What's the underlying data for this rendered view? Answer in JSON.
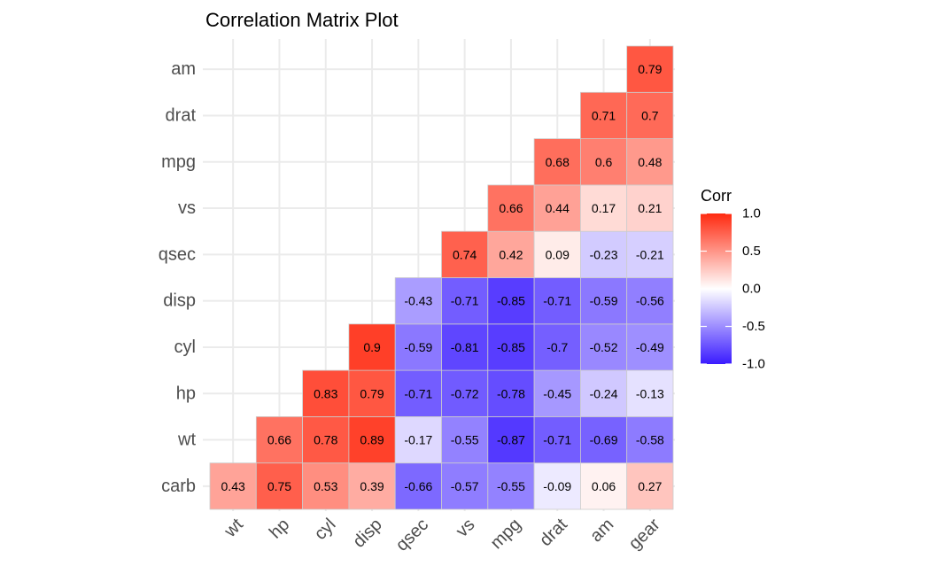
{
  "chart_data": {
    "type": "heatmap",
    "title": "Correlation Matrix Plot",
    "x_categories": [
      "wt",
      "hp",
      "cyl",
      "disp",
      "qsec",
      "vs",
      "mpg",
      "drat",
      "am",
      "gear"
    ],
    "y_categories": [
      "carb",
      "wt",
      "hp",
      "cyl",
      "disp",
      "qsec",
      "vs",
      "mpg",
      "drat",
      "am"
    ],
    "cells": [
      {
        "x": "wt",
        "y": "carb",
        "value": 0.43,
        "label": "0.43"
      },
      {
        "x": "hp",
        "y": "carb",
        "value": 0.75,
        "label": "0.75"
      },
      {
        "x": "cyl",
        "y": "carb",
        "value": 0.53,
        "label": "0.53"
      },
      {
        "x": "disp",
        "y": "carb",
        "value": 0.39,
        "label": "0.39"
      },
      {
        "x": "qsec",
        "y": "carb",
        "value": -0.66,
        "label": "-0.66"
      },
      {
        "x": "vs",
        "y": "carb",
        "value": -0.57,
        "label": "-0.57"
      },
      {
        "x": "mpg",
        "y": "carb",
        "value": -0.55,
        "label": "-0.55"
      },
      {
        "x": "drat",
        "y": "carb",
        "value": -0.09,
        "label": "-0.09"
      },
      {
        "x": "am",
        "y": "carb",
        "value": 0.06,
        "label": "0.06"
      },
      {
        "x": "gear",
        "y": "carb",
        "value": 0.27,
        "label": "0.27"
      },
      {
        "x": "hp",
        "y": "wt",
        "value": 0.66,
        "label": "0.66"
      },
      {
        "x": "cyl",
        "y": "wt",
        "value": 0.78,
        "label": "0.78"
      },
      {
        "x": "disp",
        "y": "wt",
        "value": 0.89,
        "label": "0.89"
      },
      {
        "x": "qsec",
        "y": "wt",
        "value": -0.17,
        "label": "-0.17"
      },
      {
        "x": "vs",
        "y": "wt",
        "value": -0.55,
        "label": "-0.55"
      },
      {
        "x": "mpg",
        "y": "wt",
        "value": -0.87,
        "label": "-0.87"
      },
      {
        "x": "drat",
        "y": "wt",
        "value": -0.71,
        "label": "-0.71"
      },
      {
        "x": "am",
        "y": "wt",
        "value": -0.69,
        "label": "-0.69"
      },
      {
        "x": "gear",
        "y": "wt",
        "value": -0.58,
        "label": "-0.58"
      },
      {
        "x": "cyl",
        "y": "hp",
        "value": 0.83,
        "label": "0.83"
      },
      {
        "x": "disp",
        "y": "hp",
        "value": 0.79,
        "label": "0.79"
      },
      {
        "x": "qsec",
        "y": "hp",
        "value": -0.71,
        "label": "-0.71"
      },
      {
        "x": "vs",
        "y": "hp",
        "value": -0.72,
        "label": "-0.72"
      },
      {
        "x": "mpg",
        "y": "hp",
        "value": -0.78,
        "label": "-0.78"
      },
      {
        "x": "drat",
        "y": "hp",
        "value": -0.45,
        "label": "-0.45"
      },
      {
        "x": "am",
        "y": "hp",
        "value": -0.24,
        "label": "-0.24"
      },
      {
        "x": "gear",
        "y": "hp",
        "value": -0.13,
        "label": "-0.13"
      },
      {
        "x": "disp",
        "y": "cyl",
        "value": 0.9,
        "label": "0.9"
      },
      {
        "x": "qsec",
        "y": "cyl",
        "value": -0.59,
        "label": "-0.59"
      },
      {
        "x": "vs",
        "y": "cyl",
        "value": -0.81,
        "label": "-0.81"
      },
      {
        "x": "mpg",
        "y": "cyl",
        "value": -0.85,
        "label": "-0.85"
      },
      {
        "x": "drat",
        "y": "cyl",
        "value": -0.7,
        "label": "-0.7"
      },
      {
        "x": "am",
        "y": "cyl",
        "value": -0.52,
        "label": "-0.52"
      },
      {
        "x": "gear",
        "y": "cyl",
        "value": -0.49,
        "label": "-0.49"
      },
      {
        "x": "qsec",
        "y": "disp",
        "value": -0.43,
        "label": "-0.43"
      },
      {
        "x": "vs",
        "y": "disp",
        "value": -0.71,
        "label": "-0.71"
      },
      {
        "x": "mpg",
        "y": "disp",
        "value": -0.85,
        "label": "-0.85"
      },
      {
        "x": "drat",
        "y": "disp",
        "value": -0.71,
        "label": "-0.71"
      },
      {
        "x": "am",
        "y": "disp",
        "value": -0.59,
        "label": "-0.59"
      },
      {
        "x": "gear",
        "y": "disp",
        "value": -0.56,
        "label": "-0.56"
      },
      {
        "x": "vs",
        "y": "qsec",
        "value": 0.74,
        "label": "0.74"
      },
      {
        "x": "mpg",
        "y": "qsec",
        "value": 0.42,
        "label": "0.42"
      },
      {
        "x": "drat",
        "y": "qsec",
        "value": 0.09,
        "label": "0.09"
      },
      {
        "x": "am",
        "y": "qsec",
        "value": -0.23,
        "label": "-0.23"
      },
      {
        "x": "gear",
        "y": "qsec",
        "value": -0.21,
        "label": "-0.21"
      },
      {
        "x": "mpg",
        "y": "vs",
        "value": 0.66,
        "label": "0.66"
      },
      {
        "x": "drat",
        "y": "vs",
        "value": 0.44,
        "label": "0.44"
      },
      {
        "x": "am",
        "y": "vs",
        "value": 0.17,
        "label": "0.17"
      },
      {
        "x": "gear",
        "y": "vs",
        "value": 0.21,
        "label": "0.21"
      },
      {
        "x": "drat",
        "y": "mpg",
        "value": 0.68,
        "label": "0.68"
      },
      {
        "x": "am",
        "y": "mpg",
        "value": 0.6,
        "label": "0.6"
      },
      {
        "x": "gear",
        "y": "mpg",
        "value": 0.48,
        "label": "0.48"
      },
      {
        "x": "am",
        "y": "drat",
        "value": 0.71,
        "label": "0.71"
      },
      {
        "x": "gear",
        "y": "drat",
        "value": 0.7,
        "label": "0.7"
      },
      {
        "x": "gear",
        "y": "am",
        "value": 0.79,
        "label": "0.79"
      }
    ],
    "legend": {
      "title": "Corr",
      "ticks": [
        1.0,
        0.5,
        0.0,
        -0.5,
        -1.0
      ],
      "tick_labels": [
        "1.0",
        "0.5",
        "0.0",
        "-0.5",
        "-1.0"
      ],
      "range": [
        -1.0,
        1.0
      ],
      "placement": "right"
    },
    "colors": {
      "low": "#3a1bff",
      "mid": "#ffffff",
      "high": "#ff2a10"
    },
    "grid": true
  }
}
